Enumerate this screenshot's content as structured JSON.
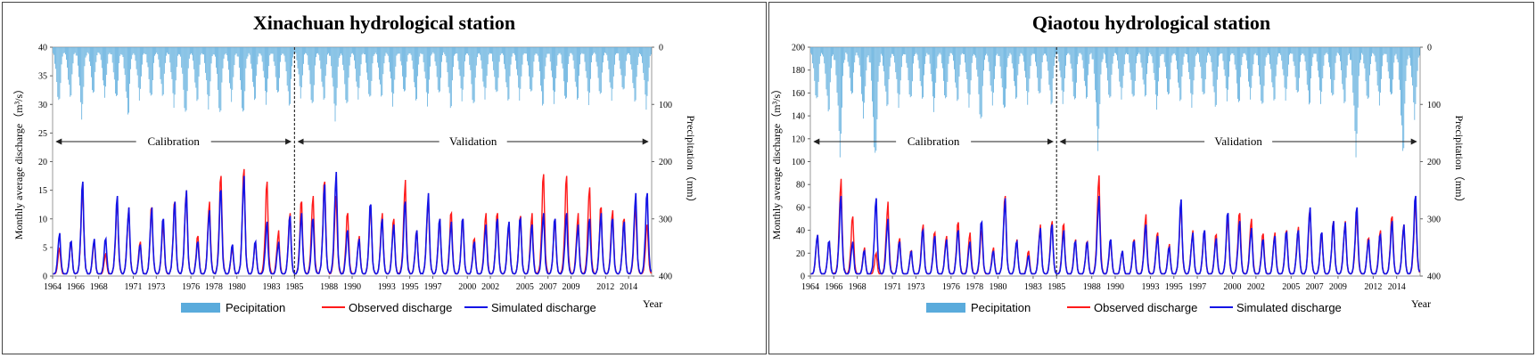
{
  "colors": {
    "precip": "#5aabdc",
    "observed": "#ff1a1a",
    "simulated": "#1414e6"
  },
  "chart_data": [
    {
      "type": "line",
      "title": "Xinachuan hydrological station",
      "ylabel_left": "Monthly average discharge（m³/s）",
      "ylabel_right": "Precipitation（mm）",
      "xlabel": "Year",
      "ylim_left": [
        0,
        40
      ],
      "yticks_left": [
        "0",
        "5",
        "10",
        "15",
        "20",
        "25",
        "30",
        "35",
        "40"
      ],
      "ylim_right": [
        0,
        400
      ],
      "yticks_right": [
        "0",
        "100",
        "200",
        "300",
        "400"
      ],
      "year_range": [
        1964,
        2015
      ],
      "xticks": [
        "1964",
        "1966",
        "1968",
        "1971",
        "1973",
        "1976",
        "1978",
        "1980",
        "1983",
        "1985",
        "1988",
        "1990",
        "1993",
        "1995",
        "1997",
        "2000",
        "2002",
        "2005",
        "2007",
        "2009",
        "2012",
        "2014"
      ],
      "split_year": 1985,
      "calibration_label": "Calibration",
      "validation_label": "Validation",
      "legend": [
        "Pecipitation",
        "Observed discharge",
        "Simulated discharge"
      ],
      "annual_precip_peak_mm": [
        98,
        85,
        115,
        83,
        85,
        95,
        120,
        88,
        92,
        85,
        98,
        120,
        92,
        99,
        118,
        92,
        125,
        94,
        95,
        86,
        102,
        83,
        104,
        90,
        118,
        102,
        88,
        96,
        88,
        98,
        84,
        93,
        96,
        84,
        104,
        86,
        102,
        88,
        87,
        95,
        88,
        84,
        102,
        92,
        96,
        90,
        92,
        85,
        90,
        82,
        97,
        103
      ],
      "annual_observed_peak": [
        5,
        6,
        16,
        6,
        4,
        13,
        12,
        6,
        12,
        9,
        13,
        15,
        7,
        13,
        17.5,
        5,
        18.7,
        6,
        16.5,
        8,
        11,
        13,
        14,
        16.5,
        14,
        11,
        7,
        12,
        11,
        10,
        16.8,
        8,
        14,
        10,
        11,
        10,
        6.5,
        11,
        11,
        9,
        10.5,
        11,
        17.8,
        10,
        17.5,
        11,
        15.5,
        12,
        11.5,
        10,
        12,
        9
      ],
      "annual_simulated_peak": [
        7.5,
        6,
        16.5,
        6.5,
        6.5,
        14,
        12,
        5.5,
        12,
        10,
        13,
        15,
        6,
        11.5,
        15,
        5.5,
        17.5,
        6,
        9.5,
        6,
        10.5,
        11,
        10,
        16,
        18.2,
        8,
        6.5,
        12.5,
        10,
        9,
        13,
        8,
        14.5,
        10,
        9.5,
        10,
        6,
        9,
        10,
        9.5,
        10,
        9,
        11,
        10,
        11,
        9,
        10,
        11,
        10,
        9.5,
        14.5,
        14.5
      ]
    },
    {
      "type": "line",
      "title": "Qiaotou hydrological station",
      "ylabel_left": "Monthly average discharge（m³/s）",
      "ylabel_right": "Precipitation（mm）",
      "xlabel": "Year",
      "ylim_left": [
        0,
        200
      ],
      "yticks_left": [
        "0",
        "20",
        "40",
        "60",
        "80",
        "100",
        "120",
        "140",
        "160",
        "180",
        "200"
      ],
      "ylim_right": [
        0,
        400
      ],
      "yticks_right": [
        "0",
        "100",
        "200",
        "300",
        "400"
      ],
      "year_range": [
        1964,
        2015
      ],
      "xticks": [
        "1964",
        "1966",
        "1968",
        "1971",
        "1973",
        "1976",
        "1978",
        "1980",
        "1983",
        "1985",
        "1988",
        "1990",
        "1993",
        "1995",
        "1997",
        "2000",
        "2002",
        "2005",
        "2007",
        "2009",
        "2012",
        "2014"
      ],
      "split_year": 1985,
      "calibration_label": "Calibration",
      "validation_label": "Validation",
      "legend": [
        "Pecipitation",
        "Observed discharge",
        "Simulated discharge"
      ],
      "annual_precip_peak_mm": [
        95,
        110,
        175,
        85,
        120,
        205,
        105,
        100,
        95,
        90,
        105,
        95,
        92,
        96,
        130,
        98,
        118,
        92,
        95,
        88,
        100,
        92,
        97,
        88,
        165,
        92,
        88,
        96,
        88,
        103,
        90,
        94,
        98,
        88,
        102,
        86,
        100,
        88,
        110,
        95,
        88,
        86,
        100,
        92,
        90,
        96,
        175,
        94,
        98,
        92,
        185,
        120
      ],
      "annual_observed_peak": [
        36,
        30,
        85,
        52,
        25,
        20,
        65,
        33,
        22,
        45,
        38,
        35,
        47,
        38,
        40,
        25,
        70,
        32,
        22,
        45,
        48,
        45,
        32,
        30,
        88,
        30,
        22,
        32,
        54,
        38,
        28,
        62,
        40,
        40,
        36,
        50,
        55,
        50,
        37,
        38,
        40,
        43,
        58,
        38,
        48,
        48,
        52,
        33,
        40,
        52,
        45,
        62
      ],
      "annual_simulated_peak": [
        36,
        30,
        70,
        30,
        22,
        68,
        50,
        30,
        22,
        40,
        35,
        32,
        40,
        30,
        47,
        22,
        68,
        30,
        18,
        42,
        45,
        40,
        30,
        30,
        70,
        32,
        22,
        30,
        45,
        35,
        25,
        67,
        38,
        40,
        33,
        55,
        48,
        42,
        32,
        35,
        38,
        40,
        60,
        38,
        48,
        47,
        60,
        32,
        36,
        48,
        45,
        70
      ]
    }
  ]
}
